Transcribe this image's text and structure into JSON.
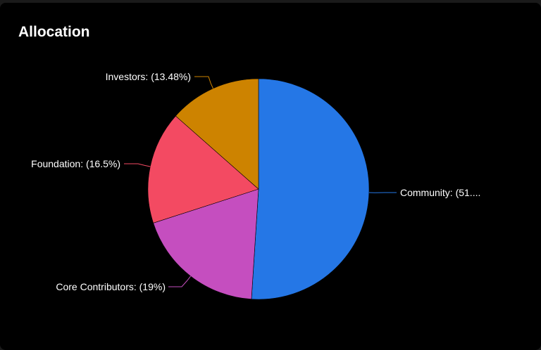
{
  "title": "Allocation",
  "chart_data": {
    "type": "pie",
    "title": "Allocation",
    "slices": [
      {
        "name": "Community",
        "value": 51.02,
        "label": "Community: (51....",
        "color": "#2577E6"
      },
      {
        "name": "Core Contributors",
        "value": 19,
        "label": "Core Contributors: (19%)",
        "color": "#C54EBF"
      },
      {
        "name": "Foundation",
        "value": 16.5,
        "label": "Foundation: (16.5%)",
        "color": "#F34A62"
      },
      {
        "name": "Investors",
        "value": 13.48,
        "label": "Investors: (13.48%)",
        "color": "#CD8300"
      }
    ]
  }
}
